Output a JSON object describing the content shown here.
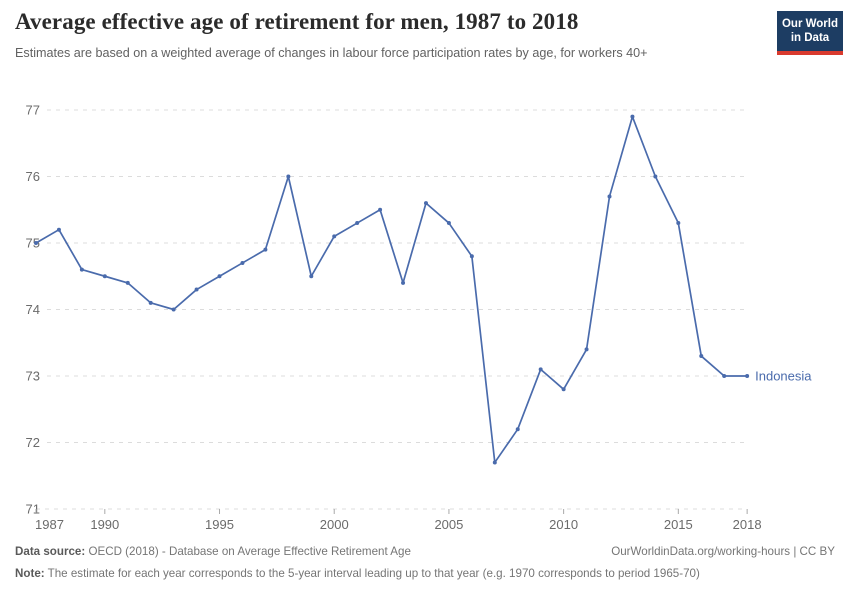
{
  "header": {
    "title": "Average effective age of retirement for men, 1987 to 2018",
    "subtitle": "Estimates are based on a weighted average of changes in labour force participation rates by age, for workers 40+"
  },
  "logo": {
    "line1": "Our World",
    "line2": "in Data"
  },
  "chart_data": {
    "type": "line",
    "title": "Average effective age of retirement for men, 1987 to 2018",
    "x": [
      1987,
      1988,
      1989,
      1990,
      1991,
      1992,
      1993,
      1994,
      1995,
      1996,
      1997,
      1998,
      1999,
      2000,
      2001,
      2002,
      2003,
      2004,
      2005,
      2006,
      2007,
      2008,
      2009,
      2010,
      2011,
      2012,
      2013,
      2014,
      2015,
      2016,
      2017,
      2018
    ],
    "series": [
      {
        "name": "Indonesia",
        "color": "#4a6bac",
        "values": [
          75.0,
          75.2,
          74.6,
          74.5,
          74.4,
          74.1,
          74.0,
          74.3,
          74.5,
          74.7,
          74.9,
          76.0,
          74.5,
          75.1,
          75.3,
          75.5,
          74.4,
          75.6,
          75.3,
          74.8,
          71.7,
          72.2,
          73.1,
          72.8,
          73.4,
          75.7,
          76.9,
          76.0,
          75.3,
          73.3,
          73.0,
          73.0
        ]
      }
    ],
    "ylim": [
      71,
      77
    ],
    "yticks": [
      71,
      72,
      73,
      74,
      75,
      76,
      77
    ],
    "xticks": [
      1987,
      1990,
      1995,
      2000,
      2005,
      2010,
      2015,
      2018
    ],
    "grid": "horizontal-dashed",
    "legend_position": "end-of-line-label",
    "xlabel": "",
    "ylabel": ""
  },
  "colors": {
    "line": "#4a6bac",
    "grid": "#dcdcdc",
    "tick_text": "#6b6b6b",
    "logo_bg": "#1d3d63",
    "logo_stripe": "#d93a2e"
  },
  "footer": {
    "datasource_label": "Data source:",
    "datasource_text": " OECD (2018) - Database on Average Effective Retirement Age",
    "link": "OurWorldinData.org/working-hours | CC BY",
    "note_label": "Note:",
    "note_text": " The estimate for each year corresponds to the 5-year interval leading up to that year (e.g. 1970 corresponds to period 1965-70)"
  }
}
